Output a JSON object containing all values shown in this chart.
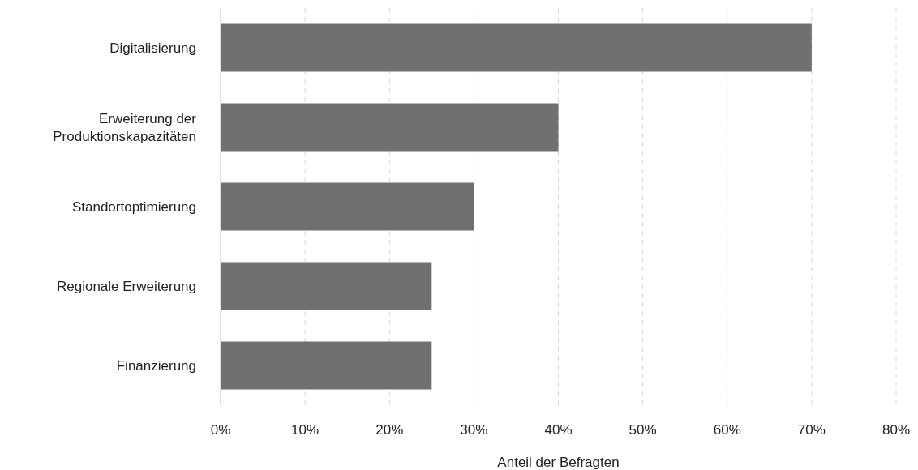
{
  "chart_data": {
    "type": "bar",
    "orientation": "horizontal",
    "xlabel": "Anteil der Befragten",
    "categories": [
      "Digitalisierung",
      "Erweiterung der Produktionskapazitäten",
      "Standortoptimierung",
      "Regionale Erweiterung",
      "Finanzierung"
    ],
    "values": [
      70,
      40,
      30,
      25,
      25
    ],
    "color": "#707072",
    "xlim": [
      0,
      80
    ],
    "xticks": [
      {
        "value": 0,
        "label": "0%"
      },
      {
        "value": 10,
        "label": "10%"
      },
      {
        "value": 20,
        "label": "20%"
      },
      {
        "value": 30,
        "label": "30%"
      },
      {
        "value": 40,
        "label": "40%"
      },
      {
        "value": 50,
        "label": "50%"
      },
      {
        "value": 60,
        "label": "60%"
      },
      {
        "value": 70,
        "label": "70%"
      },
      {
        "value": 80,
        "label": "80%"
      }
    ],
    "grid": "x"
  }
}
